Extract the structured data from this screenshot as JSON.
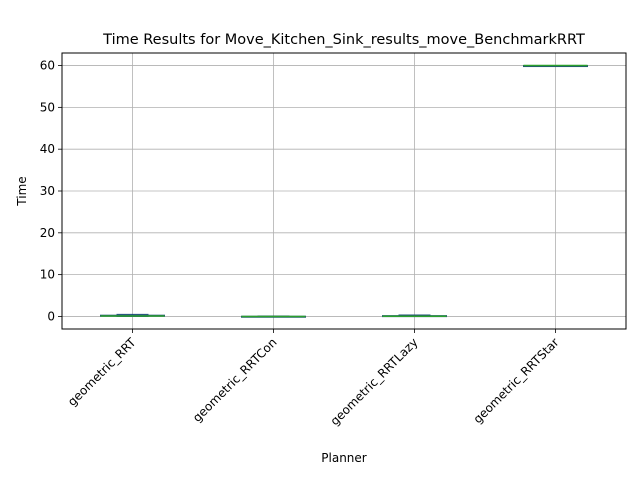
{
  "chart_data": {
    "type": "box",
    "title": "Time Results for Move_Kitchen_Sink_results_move_BenchmarkRRT",
    "xlabel": "Planner",
    "ylabel": "Time",
    "ylim": [
      -3,
      63
    ],
    "yticks": [
      0,
      10,
      20,
      30,
      40,
      50,
      60
    ],
    "grid": true,
    "categories": [
      "geometric_RRT",
      "geometric_RRTCon",
      "geometric_RRTLazy",
      "geometric_RRTStar"
    ],
    "series": [
      {
        "q1": 0.05,
        "median": 0.1,
        "q3": 0.3,
        "whisker_low": 0.0,
        "whisker_high": 0.5
      },
      {
        "q1": -0.05,
        "median": 0.0,
        "q3": 0.05,
        "whisker_low": -0.1,
        "whisker_high": 0.1
      },
      {
        "q1": 0.0,
        "median": 0.05,
        "q3": 0.2,
        "whisker_low": 0.0,
        "whisker_high": 0.35
      },
      {
        "q1": 60.0,
        "median": 60.0,
        "q3": 60.0,
        "whisker_low": 60.0,
        "whisker_high": 60.0
      }
    ],
    "colors": {
      "box": "#1f4e7a",
      "median": "#2ca02c",
      "grid": "#b0b0b0",
      "axes": "#000000"
    }
  }
}
